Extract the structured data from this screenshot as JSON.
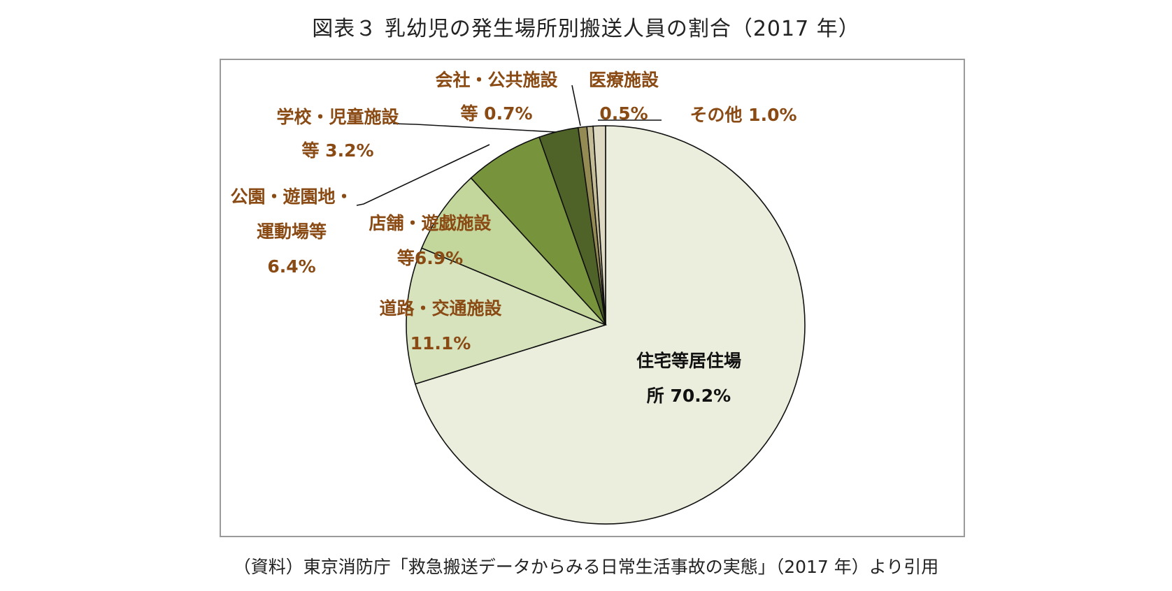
{
  "title": "図表３ 乳幼児の発生場所別搬送人員の割合（2017 年）",
  "source": "（資料）東京消防庁「救急搬送データからみる日常生活事故の実態」（2017 年）より引用",
  "chart_data": {
    "type": "pie",
    "slices": [
      {
        "label_lines": [
          "住宅等居住場",
          "所 70.2%"
        ],
        "value": 70.2,
        "color": "#ebeedd"
      },
      {
        "label_lines": [
          "道路・交通施設",
          "11.1%"
        ],
        "value": 11.1,
        "color": "#d7e3bd"
      },
      {
        "label_lines": [
          "店舗・遊戯施設",
          "等6.9%"
        ],
        "value": 6.9,
        "color": "#c3d69b"
      },
      {
        "label_lines": [
          "公園・遊園地・",
          "運動場等",
          "6.4%"
        ],
        "value": 6.4,
        "color": "#77933c"
      },
      {
        "label_lines": [
          "学校・児童施設",
          "等 3.2%"
        ],
        "value": 3.2,
        "color": "#4f6228"
      },
      {
        "label_lines": [
          "会社・公共施設",
          "等 0.7%"
        ],
        "value": 0.7,
        "color": "#948a54"
      },
      {
        "label_lines": [
          "医療施設",
          "0.5%"
        ],
        "value": 0.5,
        "color": "#c4bd97"
      },
      {
        "label_lines": [
          "その他 1.0%"
        ],
        "value": 1.0,
        "color": "#ddd9c3"
      }
    ],
    "start_angle_deg": 0,
    "direction": "clockwise",
    "legend": "none"
  }
}
